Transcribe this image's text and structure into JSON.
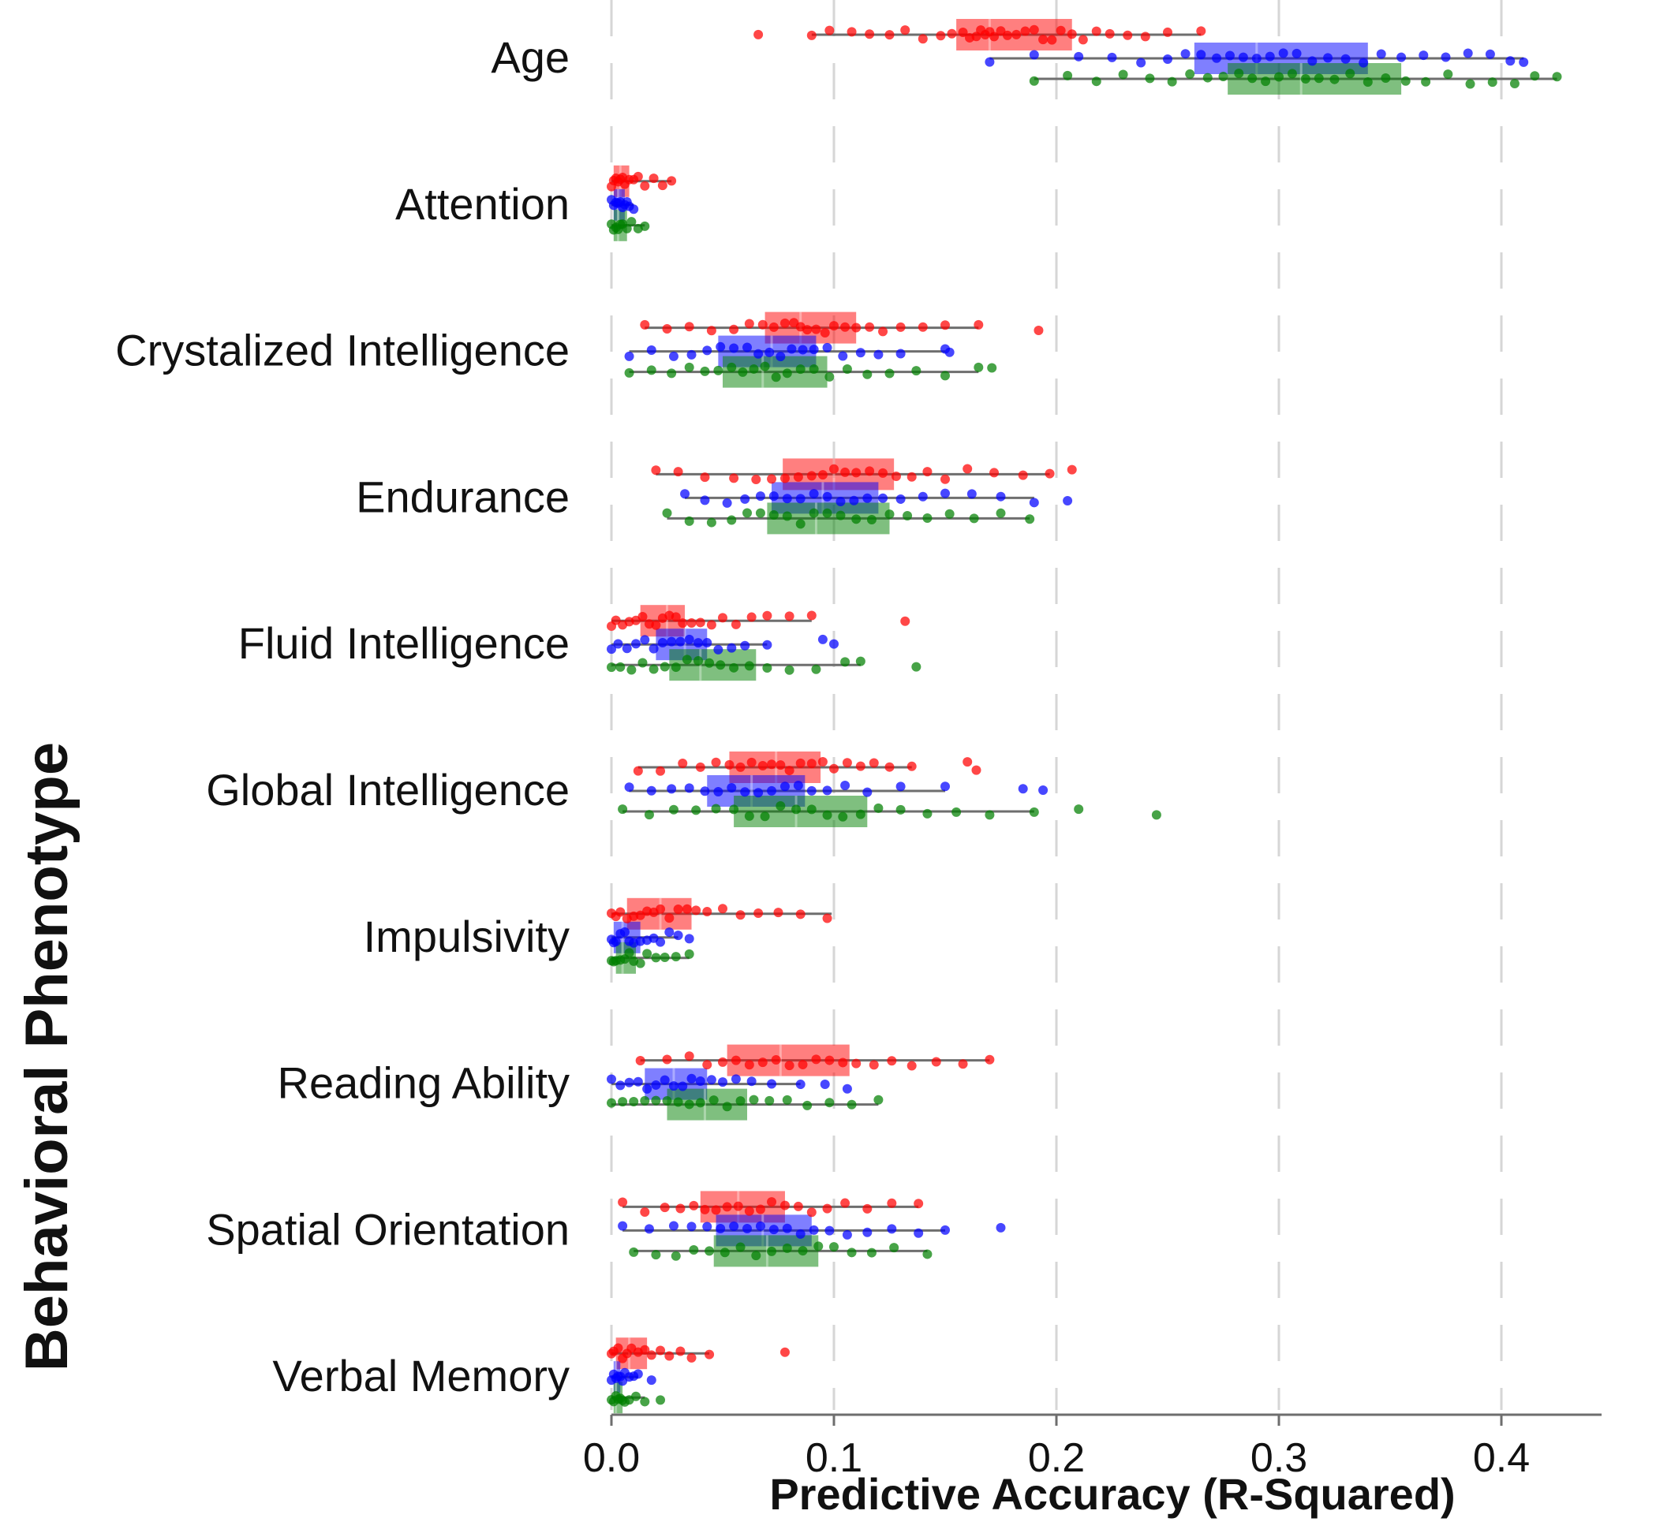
{
  "chart_data": {
    "type": "box-strip",
    "title": "",
    "xlabel": "Predictive Accuracy (R-Squared)",
    "ylabel": "Behavioral Phenotype",
    "xlim": [
      0.0,
      0.45
    ],
    "x_ticks": [
      0.0,
      0.1,
      0.2,
      0.3,
      0.4
    ],
    "x_tick_labels": [
      "0.0",
      "0.1",
      "0.2",
      "0.3",
      "0.4"
    ],
    "grid": "vertical dashed at x ticks",
    "legend": "none",
    "categories": [
      "Age",
      "Attention",
      "Crystalized Intelligence",
      "Endurance",
      "Fluid Intelligence",
      "Global Intelligence",
      "Impulsivity",
      "Reading Ability",
      "Spatial Orientation",
      "Verbal Memory"
    ],
    "series_colors": [
      "#ff0000",
      "#0000ff",
      "#008000"
    ],
    "series": [
      {
        "color": "#ff0000",
        "stats": [
          {
            "min": 0.09,
            "q1": 0.155,
            "median": 0.17,
            "q3": 0.207,
            "max": 0.265
          },
          {
            "min": 0.0,
            "q1": 0.001,
            "median": 0.004,
            "q3": 0.008,
            "max": 0.027
          },
          {
            "min": 0.015,
            "q1": 0.069,
            "median": 0.085,
            "q3": 0.11,
            "max": 0.165
          },
          {
            "min": 0.02,
            "q1": 0.077,
            "median": 0.1,
            "q3": 0.127,
            "max": 0.197
          },
          {
            "min": 0.0,
            "q1": 0.013,
            "median": 0.025,
            "q3": 0.033,
            "max": 0.09
          },
          {
            "min": 0.012,
            "q1": 0.053,
            "median": 0.074,
            "q3": 0.094,
            "max": 0.135
          },
          {
            "min": 0.0,
            "q1": 0.007,
            "median": 0.022,
            "q3": 0.036,
            "max": 0.099
          },
          {
            "min": 0.013,
            "q1": 0.052,
            "median": 0.076,
            "q3": 0.107,
            "max": 0.17
          },
          {
            "min": 0.005,
            "q1": 0.04,
            "median": 0.057,
            "q3": 0.078,
            "max": 0.138
          },
          {
            "min": 0.0,
            "q1": 0.002,
            "median": 0.008,
            "q3": 0.016,
            "max": 0.044
          }
        ],
        "points": [
          [
            0.066,
            0.09,
            0.098,
            0.108,
            0.116,
            0.125,
            0.132,
            0.14,
            0.148,
            0.153,
            0.158,
            0.161,
            0.164,
            0.166,
            0.168,
            0.17,
            0.172,
            0.175,
            0.178,
            0.182,
            0.186,
            0.19,
            0.194,
            0.198,
            0.202,
            0.207,
            0.212,
            0.218,
            0.224,
            0.232,
            0.24,
            0.25,
            0.265
          ],
          [
            0.0,
            0.001,
            0.002,
            0.003,
            0.004,
            0.005,
            0.006,
            0.008,
            0.01,
            0.012,
            0.015,
            0.019,
            0.023,
            0.027
          ],
          [
            0.015,
            0.025,
            0.035,
            0.045,
            0.055,
            0.062,
            0.068,
            0.073,
            0.078,
            0.082,
            0.085,
            0.088,
            0.092,
            0.096,
            0.1,
            0.105,
            0.11,
            0.116,
            0.122,
            0.13,
            0.14,
            0.15,
            0.165,
            0.192
          ],
          [
            0.02,
            0.03,
            0.042,
            0.055,
            0.065,
            0.072,
            0.078,
            0.084,
            0.09,
            0.095,
            0.1,
            0.105,
            0.11,
            0.116,
            0.122,
            0.128,
            0.135,
            0.142,
            0.15,
            0.16,
            0.172,
            0.185,
            0.197,
            0.207
          ],
          [
            0.0,
            0.002,
            0.005,
            0.008,
            0.011,
            0.014,
            0.017,
            0.02,
            0.023,
            0.026,
            0.029,
            0.032,
            0.036,
            0.04,
            0.045,
            0.05,
            0.056,
            0.063,
            0.07,
            0.08,
            0.09,
            0.132
          ],
          [
            0.012,
            0.022,
            0.032,
            0.04,
            0.047,
            0.053,
            0.058,
            0.063,
            0.068,
            0.072,
            0.076,
            0.08,
            0.085,
            0.09,
            0.095,
            0.1,
            0.106,
            0.112,
            0.118,
            0.125,
            0.135,
            0.16,
            0.164
          ],
          [
            0.0,
            0.002,
            0.004,
            0.007,
            0.01,
            0.013,
            0.016,
            0.019,
            0.022,
            0.026,
            0.03,
            0.034,
            0.038,
            0.043,
            0.05,
            0.058,
            0.066,
            0.075,
            0.085,
            0.097
          ],
          [
            0.013,
            0.025,
            0.035,
            0.043,
            0.05,
            0.056,
            0.062,
            0.068,
            0.074,
            0.08,
            0.086,
            0.092,
            0.098,
            0.104,
            0.11,
            0.118,
            0.126,
            0.135,
            0.146,
            0.158,
            0.17
          ],
          [
            0.005,
            0.015,
            0.024,
            0.031,
            0.037,
            0.042,
            0.047,
            0.052,
            0.057,
            0.062,
            0.067,
            0.072,
            0.078,
            0.084,
            0.09,
            0.097,
            0.105,
            0.115,
            0.126,
            0.138
          ],
          [
            0.0,
            0.001,
            0.003,
            0.005,
            0.007,
            0.009,
            0.012,
            0.015,
            0.018,
            0.022,
            0.026,
            0.031,
            0.036,
            0.044,
            0.078
          ]
        ]
      },
      {
        "color": "#0000ff",
        "stats": [
          {
            "min": 0.17,
            "q1": 0.262,
            "median": 0.29,
            "q3": 0.34,
            "max": 0.41
          },
          {
            "min": 0.0,
            "q1": 0.001,
            "median": 0.003,
            "q3": 0.006,
            "max": 0.01
          },
          {
            "min": 0.008,
            "q1": 0.048,
            "median": 0.072,
            "q3": 0.092,
            "max": 0.15
          },
          {
            "min": 0.033,
            "q1": 0.072,
            "median": 0.095,
            "q3": 0.12,
            "max": 0.19
          },
          {
            "min": 0.0,
            "q1": 0.02,
            "median": 0.033,
            "q3": 0.043,
            "max": 0.07
          },
          {
            "min": 0.008,
            "q1": 0.043,
            "median": 0.063,
            "q3": 0.087,
            "max": 0.15
          },
          {
            "min": 0.0,
            "q1": 0.001,
            "median": 0.005,
            "q3": 0.013,
            "max": 0.03
          },
          {
            "min": 0.0,
            "q1": 0.015,
            "median": 0.028,
            "q3": 0.043,
            "max": 0.085
          },
          {
            "min": 0.005,
            "q1": 0.047,
            "median": 0.068,
            "q3": 0.09,
            "max": 0.15
          },
          {
            "min": 0.0,
            "q1": 0.001,
            "median": 0.002,
            "q3": 0.004,
            "max": 0.012
          }
        ],
        "points": [
          [
            0.17,
            0.19,
            0.21,
            0.225,
            0.238,
            0.25,
            0.258,
            0.265,
            0.272,
            0.278,
            0.284,
            0.29,
            0.296,
            0.302,
            0.308,
            0.315,
            0.322,
            0.33,
            0.338,
            0.346,
            0.355,
            0.365,
            0.375,
            0.385,
            0.395,
            0.404,
            0.41
          ],
          [
            0.0,
            0.001,
            0.002,
            0.003,
            0.004,
            0.005,
            0.006,
            0.007,
            0.008,
            0.01
          ],
          [
            0.008,
            0.018,
            0.028,
            0.036,
            0.043,
            0.049,
            0.055,
            0.061,
            0.066,
            0.071,
            0.076,
            0.081,
            0.086,
            0.091,
            0.097,
            0.104,
            0.112,
            0.12,
            0.13,
            0.15,
            0.152
          ],
          [
            0.033,
            0.042,
            0.052,
            0.06,
            0.067,
            0.073,
            0.079,
            0.085,
            0.091,
            0.097,
            0.103,
            0.109,
            0.115,
            0.122,
            0.13,
            0.14,
            0.15,
            0.162,
            0.175,
            0.19,
            0.205
          ],
          [
            0.0,
            0.003,
            0.007,
            0.011,
            0.015,
            0.019,
            0.023,
            0.027,
            0.031,
            0.035,
            0.039,
            0.043,
            0.048,
            0.054,
            0.06,
            0.07,
            0.095,
            0.1
          ],
          [
            0.008,
            0.018,
            0.027,
            0.035,
            0.042,
            0.048,
            0.054,
            0.06,
            0.066,
            0.072,
            0.078,
            0.084,
            0.09,
            0.097,
            0.105,
            0.115,
            0.13,
            0.15,
            0.185,
            0.194
          ],
          [
            0.0,
            0.001,
            0.002,
            0.004,
            0.006,
            0.008,
            0.01,
            0.013,
            0.016,
            0.019,
            0.022,
            0.026,
            0.03,
            0.035
          ],
          [
            0.0,
            0.004,
            0.008,
            0.012,
            0.016,
            0.02,
            0.024,
            0.028,
            0.032,
            0.036,
            0.04,
            0.045,
            0.05,
            0.056,
            0.063,
            0.072,
            0.085,
            0.096,
            0.106
          ],
          [
            0.005,
            0.017,
            0.028,
            0.036,
            0.043,
            0.049,
            0.055,
            0.061,
            0.067,
            0.073,
            0.079,
            0.085,
            0.091,
            0.098,
            0.106,
            0.115,
            0.126,
            0.138,
            0.15,
            0.175
          ],
          [
            0.0,
            0.001,
            0.002,
            0.003,
            0.004,
            0.005,
            0.006,
            0.008,
            0.01,
            0.012,
            0.018
          ]
        ]
      },
      {
        "color": "#008000",
        "stats": [
          {
            "min": 0.19,
            "q1": 0.277,
            "median": 0.31,
            "q3": 0.355,
            "max": 0.425
          },
          {
            "min": 0.0,
            "q1": 0.001,
            "median": 0.003,
            "q3": 0.007,
            "max": 0.015
          },
          {
            "min": 0.008,
            "q1": 0.05,
            "median": 0.068,
            "q3": 0.097,
            "max": 0.165
          },
          {
            "min": 0.025,
            "q1": 0.07,
            "median": 0.092,
            "q3": 0.125,
            "max": 0.188
          },
          {
            "min": 0.0,
            "q1": 0.026,
            "median": 0.04,
            "q3": 0.065,
            "max": 0.112
          },
          {
            "min": 0.005,
            "q1": 0.055,
            "median": 0.083,
            "q3": 0.115,
            "max": 0.19
          },
          {
            "min": 0.0,
            "q1": 0.002,
            "median": 0.005,
            "q3": 0.011,
            "max": 0.035
          },
          {
            "min": 0.0,
            "q1": 0.025,
            "median": 0.042,
            "q3": 0.061,
            "max": 0.12
          },
          {
            "min": 0.01,
            "q1": 0.046,
            "median": 0.07,
            "q3": 0.093,
            "max": 0.142
          },
          {
            "min": 0.0,
            "q1": 0.001,
            "median": 0.002,
            "q3": 0.005,
            "max": 0.015
          }
        ],
        "points": [
          [
            0.19,
            0.205,
            0.218,
            0.23,
            0.242,
            0.252,
            0.26,
            0.268,
            0.275,
            0.282,
            0.288,
            0.294,
            0.3,
            0.306,
            0.312,
            0.318,
            0.325,
            0.332,
            0.34,
            0.348,
            0.357,
            0.366,
            0.376,
            0.386,
            0.396,
            0.406,
            0.415,
            0.425
          ],
          [
            0.0,
            0.001,
            0.002,
            0.003,
            0.004,
            0.005,
            0.007,
            0.009,
            0.012,
            0.015
          ],
          [
            0.008,
            0.018,
            0.027,
            0.035,
            0.042,
            0.048,
            0.054,
            0.059,
            0.064,
            0.069,
            0.074,
            0.079,
            0.085,
            0.091,
            0.098,
            0.106,
            0.115,
            0.125,
            0.137,
            0.15,
            0.165,
            0.171
          ],
          [
            0.025,
            0.035,
            0.045,
            0.054,
            0.061,
            0.067,
            0.073,
            0.079,
            0.085,
            0.091,
            0.097,
            0.103,
            0.11,
            0.117,
            0.125,
            0.133,
            0.142,
            0.152,
            0.163,
            0.175,
            0.188
          ],
          [
            0.0,
            0.004,
            0.009,
            0.014,
            0.019,
            0.024,
            0.029,
            0.034,
            0.039,
            0.044,
            0.049,
            0.055,
            0.062,
            0.07,
            0.08,
            0.092,
            0.105,
            0.112,
            0.137
          ],
          [
            0.005,
            0.017,
            0.028,
            0.038,
            0.047,
            0.055,
            0.062,
            0.069,
            0.076,
            0.083,
            0.09,
            0.097,
            0.104,
            0.112,
            0.12,
            0.13,
            0.142,
            0.155,
            0.17,
            0.19,
            0.21,
            0.245
          ],
          [
            0.0,
            0.001,
            0.002,
            0.004,
            0.006,
            0.008,
            0.01,
            0.013,
            0.016,
            0.02,
            0.024,
            0.029,
            0.035
          ],
          [
            0.0,
            0.005,
            0.01,
            0.015,
            0.02,
            0.025,
            0.03,
            0.035,
            0.04,
            0.046,
            0.052,
            0.058,
            0.064,
            0.071,
            0.079,
            0.088,
            0.098,
            0.108,
            0.12
          ],
          [
            0.01,
            0.02,
            0.029,
            0.037,
            0.044,
            0.051,
            0.058,
            0.065,
            0.072,
            0.079,
            0.086,
            0.093,
            0.1,
            0.108,
            0.117,
            0.127,
            0.142
          ],
          [
            0.0,
            0.001,
            0.002,
            0.003,
            0.004,
            0.005,
            0.006,
            0.008,
            0.011,
            0.015,
            0.022
          ]
        ]
      }
    ]
  }
}
